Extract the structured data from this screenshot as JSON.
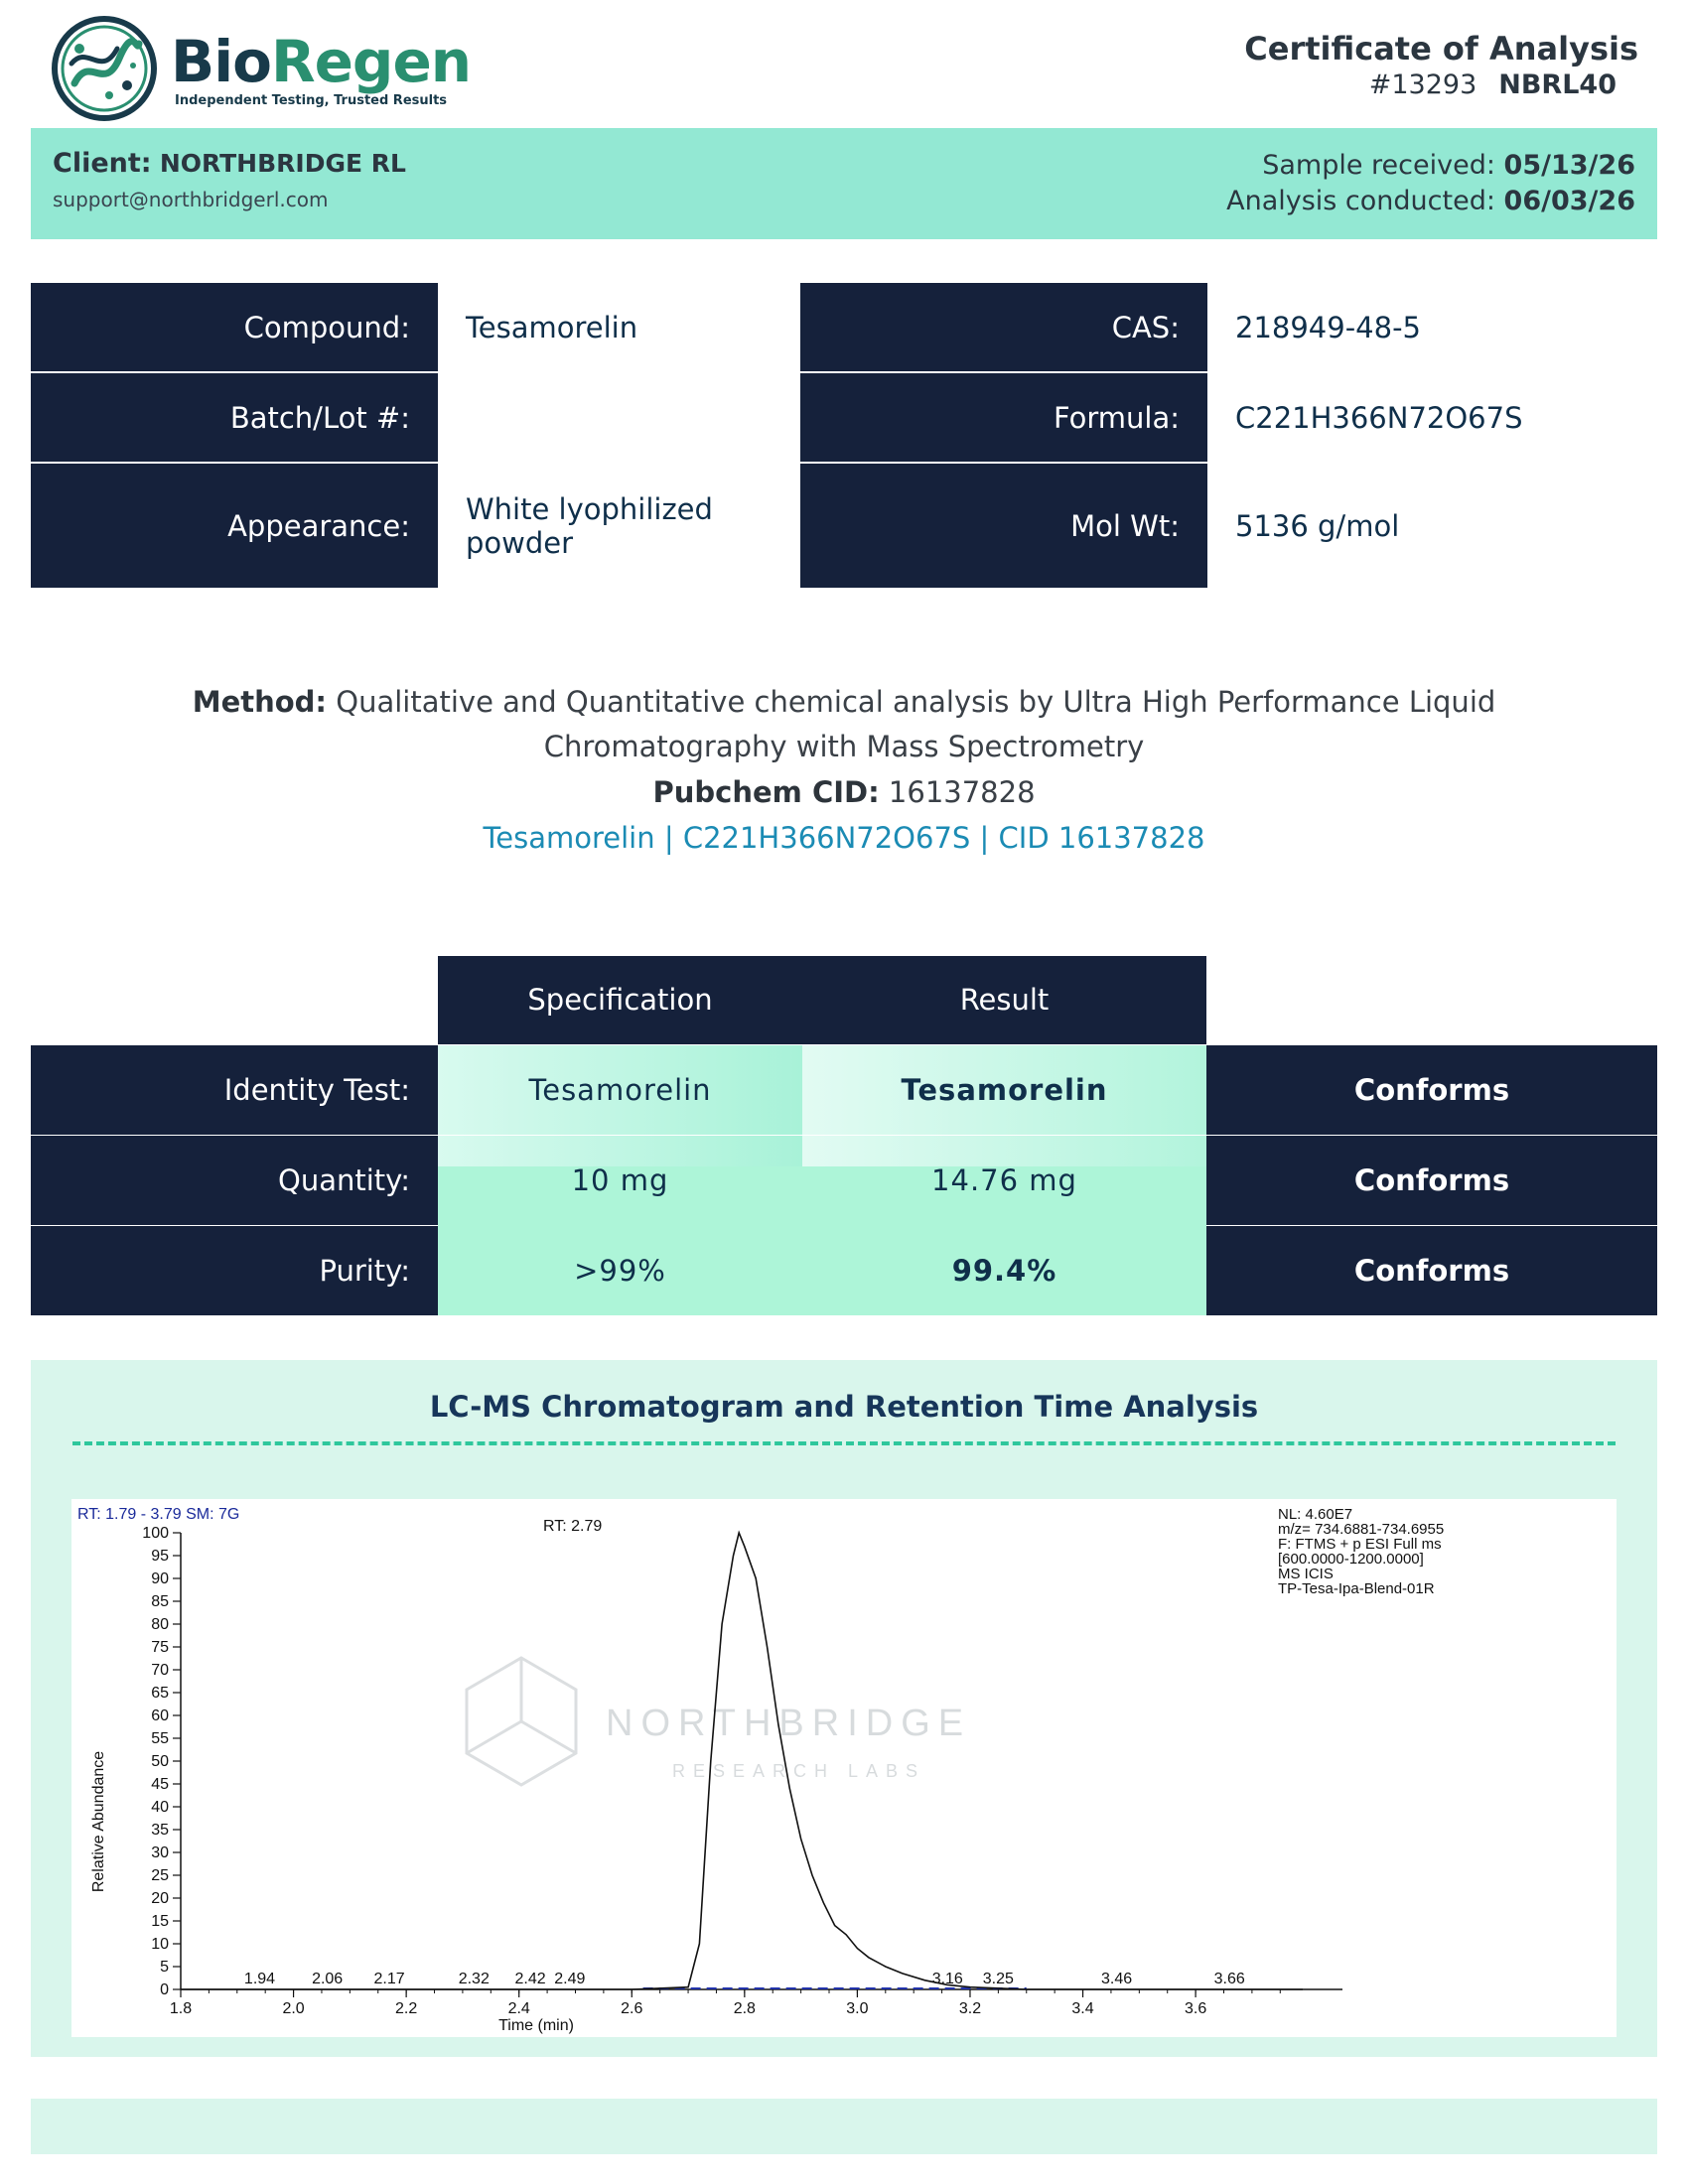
{
  "brand": {
    "name_part1": "Bio",
    "name_part2": "Regen",
    "tagline": "Independent Testing, Trusted Results"
  },
  "header": {
    "title": "Certificate of Analysis",
    "number": "#13293",
    "code": "NBRL40"
  },
  "client": {
    "label": "Client:",
    "name": "NORTHBRIDGE RL",
    "email": "support@northbridgerl.com",
    "sample_received_label": "Sample received:",
    "sample_received": "05/13/26",
    "analysis_conducted_label": "Analysis conducted:",
    "analysis_conducted": "06/03/26"
  },
  "info": {
    "compound_label": "Compound:",
    "compound": "Tesamorelin",
    "batch_label": "Batch/Lot #:",
    "batch": "",
    "appearance_label": "Appearance:",
    "appearance": "White lyophilized powder",
    "cas_label": "CAS:",
    "cas": "218949-48-5",
    "formula_label": "Formula:",
    "formula": "C221H366N72O67S",
    "molwt_label": "Mol Wt:",
    "molwt": "5136 g/mol"
  },
  "method": {
    "label": "Method:",
    "text_line1": "Qualitative and Quantitative chemical analysis by Ultra High Performance Liquid",
    "text_line2": "Chromatography with Mass Spectrometry",
    "pubchem_label": "Pubchem CID:",
    "pubchem_cid": "16137828",
    "link_text": "Tesamorelin | C221H366N72O67S | CID 16137828"
  },
  "results": {
    "spec_header": "Specification",
    "result_header": "Result",
    "rows": [
      {
        "label": "Identity Test:",
        "spec": "Tesamorelin",
        "result": "Tesamorelin",
        "status": "Conforms"
      },
      {
        "label": "Quantity:",
        "spec": "10 mg",
        "result": "14.76 mg",
        "status": "Conforms"
      },
      {
        "label": "Purity:",
        "spec": ">99%",
        "result": "99.4%",
        "status": "Conforms"
      }
    ]
  },
  "chromatogram": {
    "title": "LC-MS Chromatogram and Retention Time Analysis",
    "header_left": "RT: 1.79 - 3.79   SM: 7G",
    "peak_label": "RT: 2.79",
    "info_lines": [
      "NL: 4.60E7",
      "m/z= 734.6881-734.6955",
      "F: FTMS + p ESI Full ms",
      "[600.0000-1200.0000]",
      "MS  ICIS",
      "TP-Tesa-Ipa-Blend-01R"
    ],
    "watermark_name": "NORTHBRIDGE",
    "watermark_sub": "RESEARCH LABS"
  },
  "chart_data": {
    "type": "line",
    "xlabel": "Time (min)",
    "ylabel": "Relative Abundance",
    "xlim": [
      1.8,
      3.79
    ],
    "ylim": [
      0,
      100
    ],
    "x_ticks": [
      "1.8",
      "2.0",
      "2.2",
      "2.4",
      "2.6",
      "2.8",
      "3.0",
      "3.2",
      "3.4",
      "3.6"
    ],
    "y_ticks": [
      "0",
      "5",
      "10",
      "15",
      "20",
      "25",
      "30",
      "35",
      "40",
      "45",
      "50",
      "55",
      "60",
      "65",
      "70",
      "75",
      "80",
      "85",
      "90",
      "95",
      "100"
    ],
    "x": [
      1.8,
      2.6,
      2.7,
      2.72,
      2.74,
      2.76,
      2.78,
      2.79,
      2.8,
      2.82,
      2.84,
      2.86,
      2.88,
      2.9,
      2.92,
      2.94,
      2.96,
      2.98,
      3.0,
      3.02,
      3.05,
      3.08,
      3.12,
      3.16,
      3.2,
      3.3,
      3.79
    ],
    "y": [
      0,
      0,
      0.5,
      10,
      50,
      80,
      95,
      100,
      97,
      90,
      75,
      58,
      44,
      33,
      25,
      19,
      14,
      12,
      9,
      7,
      5,
      3.5,
      2,
      1,
      0.5,
      0,
      0
    ],
    "peak_labels": [
      "1.94",
      "2.06",
      "2.17",
      "2.32",
      "2.42",
      "2.49",
      "3.16",
      "3.25",
      "3.46",
      "3.66"
    ],
    "peak_label_x": [
      1.94,
      2.06,
      2.17,
      2.32,
      2.42,
      2.49,
      3.16,
      3.25,
      3.46,
      3.66
    ]
  },
  "colors": {
    "navy": "#15213b",
    "mint_band": "#93e8d3",
    "mint_panel": "#d9f6ec",
    "link": "#1b8bb4",
    "brand_green": "#2a8f70"
  }
}
